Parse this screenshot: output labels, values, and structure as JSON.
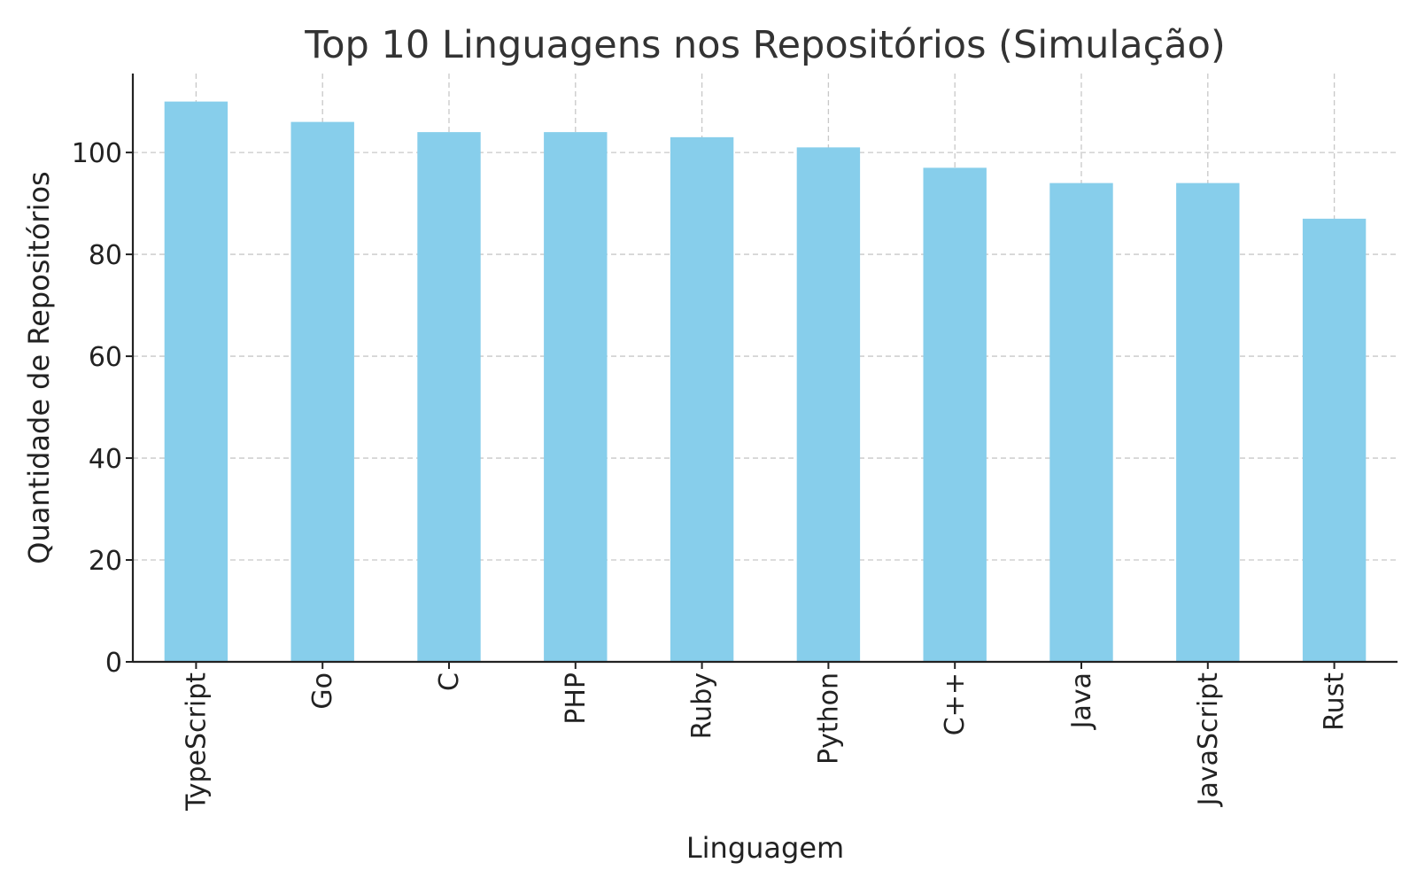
{
  "chart_data": {
    "type": "bar",
    "title": "Top 10 Linguagens nos Repositórios (Simulação)",
    "xlabel": "Linguagem",
    "ylabel": "Quantidade de Repositórios",
    "categories": [
      "TypeScript",
      "Go",
      "C",
      "PHP",
      "Ruby",
      "Python",
      "C++",
      "Java",
      "JavaScript",
      "Rust"
    ],
    "values": [
      110,
      106,
      104,
      104,
      103,
      101,
      97,
      94,
      94,
      87
    ],
    "ylim": [
      0,
      115.5
    ],
    "yticks": [
      0,
      20,
      40,
      60,
      80,
      100
    ],
    "grid": true,
    "legend": "none",
    "colors": {
      "bar": "#87ceeb",
      "grid": "#c8c8c8",
      "axis": "#222222",
      "title": "#333333"
    }
  }
}
